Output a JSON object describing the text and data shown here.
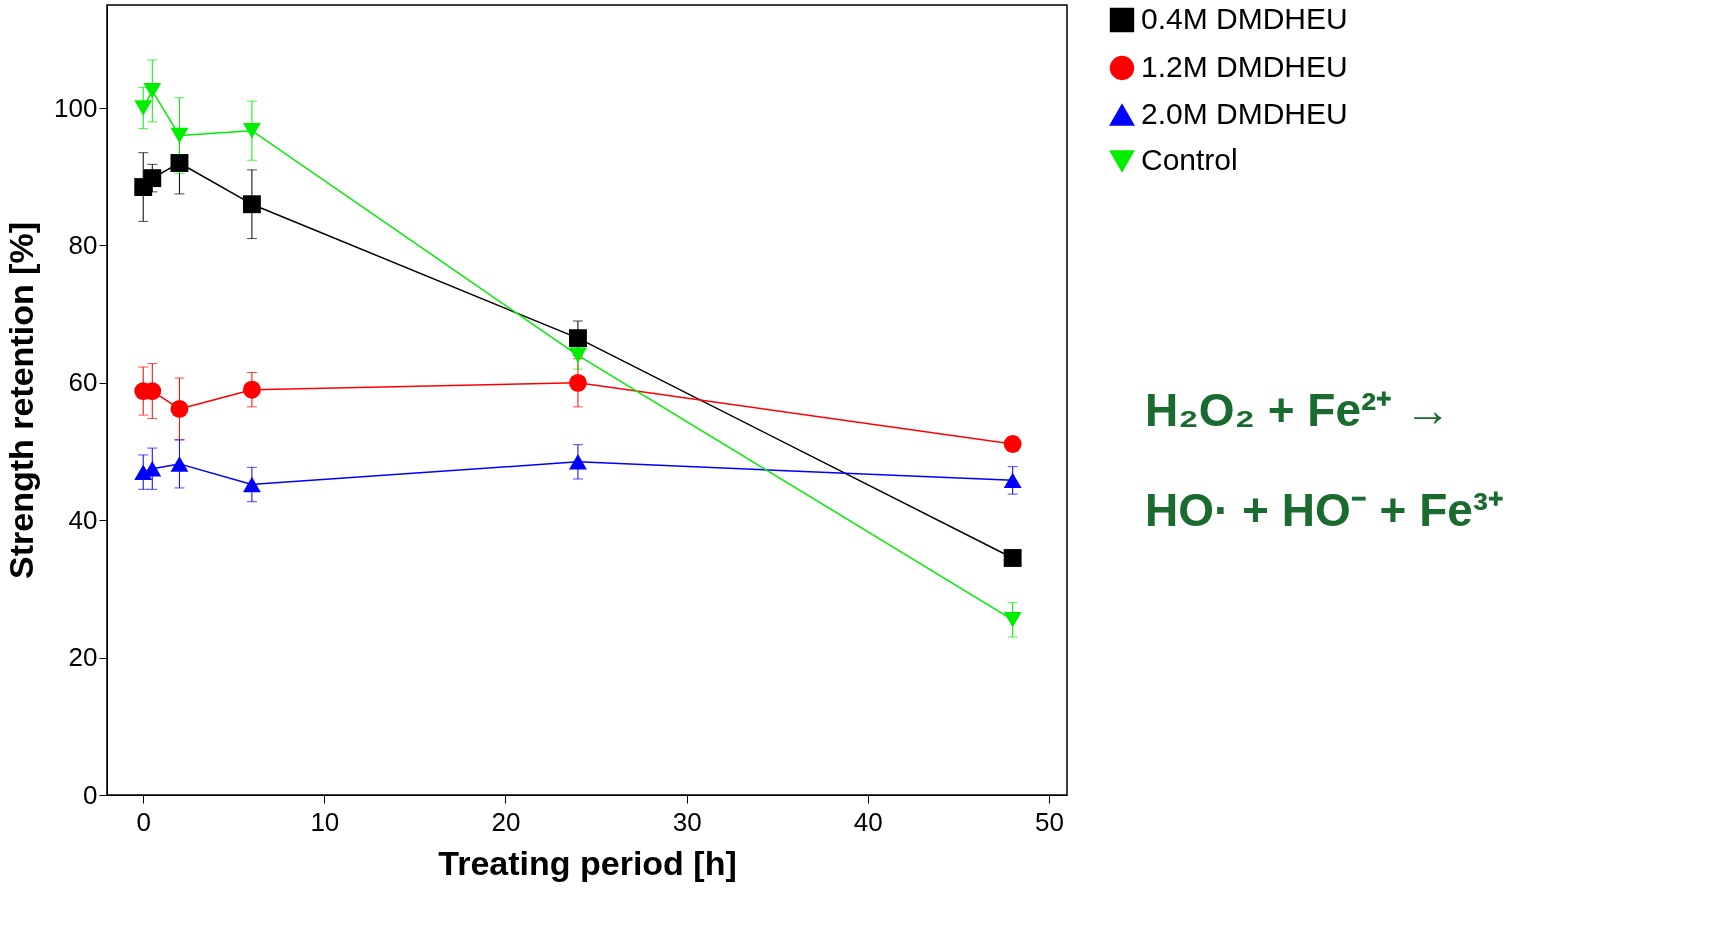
{
  "chart_data": {
    "type": "line",
    "xlabel": "Treating period [h]",
    "ylabel": "Strength retention [%]",
    "x": [
      0,
      0.5,
      2,
      6,
      24,
      48
    ],
    "series": [
      {
        "name": "0.4M DMDHEU",
        "color": "#000000",
        "marker": "square",
        "values": [
          88.5,
          89.8,
          92,
          86,
          66.5,
          34.5
        ],
        "errors": [
          5,
          2,
          4.5,
          5,
          2.5,
          1
        ]
      },
      {
        "name": "1.2M DMDHEU",
        "color": "#ff0000",
        "marker": "circle",
        "values": [
          58.8,
          58.8,
          56.2,
          59,
          60,
          51.1
        ],
        "errors": [
          3.5,
          4,
          4.5,
          2.5,
          3.5,
          1
        ]
      },
      {
        "name": "2.0M DMDHEU",
        "color": "#0000ff",
        "marker": "triangle",
        "values": [
          47,
          47.5,
          48.2,
          45.2,
          48.5,
          45.8
        ],
        "errors": [
          2.5,
          3,
          3.5,
          2.5,
          2.5,
          2
        ]
      },
      {
        "name": "Control",
        "color": "#00ee00",
        "marker": "triangle-down",
        "values": [
          100,
          102.5,
          96,
          96.7,
          64,
          25.5
        ],
        "errors": [
          3,
          4.5,
          5.5,
          4.3,
          2,
          2.5
        ]
      }
    ],
    "xlim": [
      -2,
      51
    ],
    "ylim": [
      0,
      115
    ],
    "xticks": [
      0,
      10,
      20,
      30,
      40,
      50
    ],
    "yticks": [
      0,
      20,
      40,
      60,
      80,
      100
    ],
    "grid": false,
    "legend": "top right",
    "line_style": "solid",
    "annotations": [
      "H₂O₂ + Fe²⁺ →",
      "HO· + HO⁻ + Fe³⁺"
    ]
  }
}
